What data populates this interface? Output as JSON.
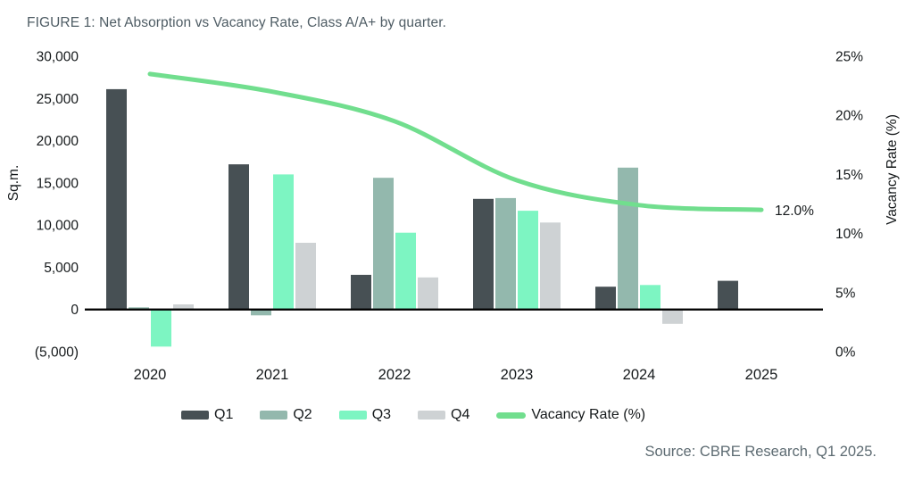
{
  "figure": {
    "title": "FIGURE 1: Net Absorption vs Vacancy Rate, Class A/A+ by quarter.",
    "source": "Source: CBRE Research, Q1 2025."
  },
  "chart_data": {
    "type": "bar+line",
    "categories": [
      "2020",
      "2021",
      "2022",
      "2023",
      "2024",
      "2025"
    ],
    "bar_series": [
      {
        "name": "Q1",
        "color": "#475054",
        "values": [
          26100,
          17200,
          4100,
          13100,
          2700,
          3400
        ]
      },
      {
        "name": "Q2",
        "color": "#93b8ad",
        "values": [
          250,
          -700,
          15600,
          13200,
          16800,
          null
        ]
      },
      {
        "name": "Q3",
        "color": "#7df5c2",
        "values": [
          -4400,
          16000,
          9100,
          11700,
          2900,
          null
        ]
      },
      {
        "name": "Q4",
        "color": "#ced2d4",
        "values": [
          600,
          7900,
          3800,
          10300,
          -1700,
          null
        ]
      }
    ],
    "line_series": {
      "name": "Vacancy Rate (%)",
      "color": "#71de8e",
      "values": [
        23.5,
        22.0,
        19.5,
        14.5,
        12.4,
        12.0
      ],
      "end_label": "12.0%"
    },
    "left_axis": {
      "label": "Sq.m.",
      "ticks": [
        "30,000",
        "25,000",
        "20,000",
        "15,000",
        "10,000",
        "5,000",
        "0",
        "(5,000)"
      ],
      "tick_values": [
        30000,
        25000,
        20000,
        15000,
        10000,
        5000,
        0,
        -5000
      ],
      "min": -5000,
      "max": 30000
    },
    "right_axis": {
      "label": "Vacancy Rate (%)",
      "ticks": [
        "25%",
        "20%",
        "15%",
        "10%",
        "5%",
        "0%"
      ],
      "tick_values": [
        25,
        20,
        15,
        10,
        5,
        0
      ],
      "min": 0,
      "max": 25
    },
    "grid": false,
    "legend_position": "bottom"
  },
  "legend": {
    "items": [
      {
        "label": "Q1",
        "color": "#475054",
        "type": "bar"
      },
      {
        "label": "Q2",
        "color": "#93b8ad",
        "type": "bar"
      },
      {
        "label": "Q3",
        "color": "#7df5c2",
        "type": "bar"
      },
      {
        "label": "Q4",
        "color": "#ced2d4",
        "type": "bar"
      },
      {
        "label": "Vacancy Rate (%)",
        "color": "#71de8e",
        "type": "line"
      }
    ]
  }
}
